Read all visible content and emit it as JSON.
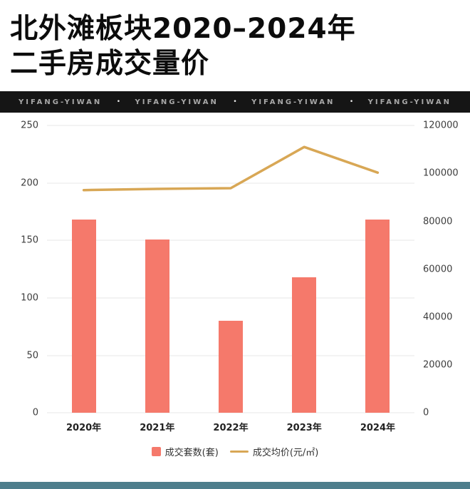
{
  "title": {
    "line1": "北外滩板块2020–2024年",
    "line2": "二手房成交量价"
  },
  "banner": {
    "items": [
      "YIFANG-YIWAN",
      "YIFANG-YIWAN",
      "YIFANG-YIWAN",
      "YIFANG-YIWAN"
    ],
    "separator": "•",
    "bg": "#151515",
    "text_color": "#a8a8a8"
  },
  "chart_data": {
    "type": "bar",
    "subtype": "bar+line dual axis",
    "categories": [
      "2020年",
      "2021年",
      "2022年",
      "2023年",
      "2024年"
    ],
    "series": [
      {
        "name": "成交套数(套)",
        "type": "bar",
        "axis": "left",
        "color": "#F5796B",
        "values": [
          168,
          151,
          80,
          118,
          168
        ]
      },
      {
        "name": "成交均价(元/㎡)",
        "type": "line",
        "axis": "right",
        "color": "#D8A755",
        "values": [
          93000,
          93500,
          93800,
          111000,
          100300
        ]
      }
    ],
    "left_axis": {
      "min": 0,
      "max": 250,
      "ticks": [
        0,
        50,
        100,
        150,
        200,
        250
      ]
    },
    "right_axis": {
      "min": 0,
      "max": 120000,
      "ticks": [
        0,
        20000,
        40000,
        60000,
        80000,
        100000,
        120000
      ]
    },
    "grid": true,
    "legend_position": "bottom"
  },
  "footer": {
    "color": "#4E7E8C"
  }
}
